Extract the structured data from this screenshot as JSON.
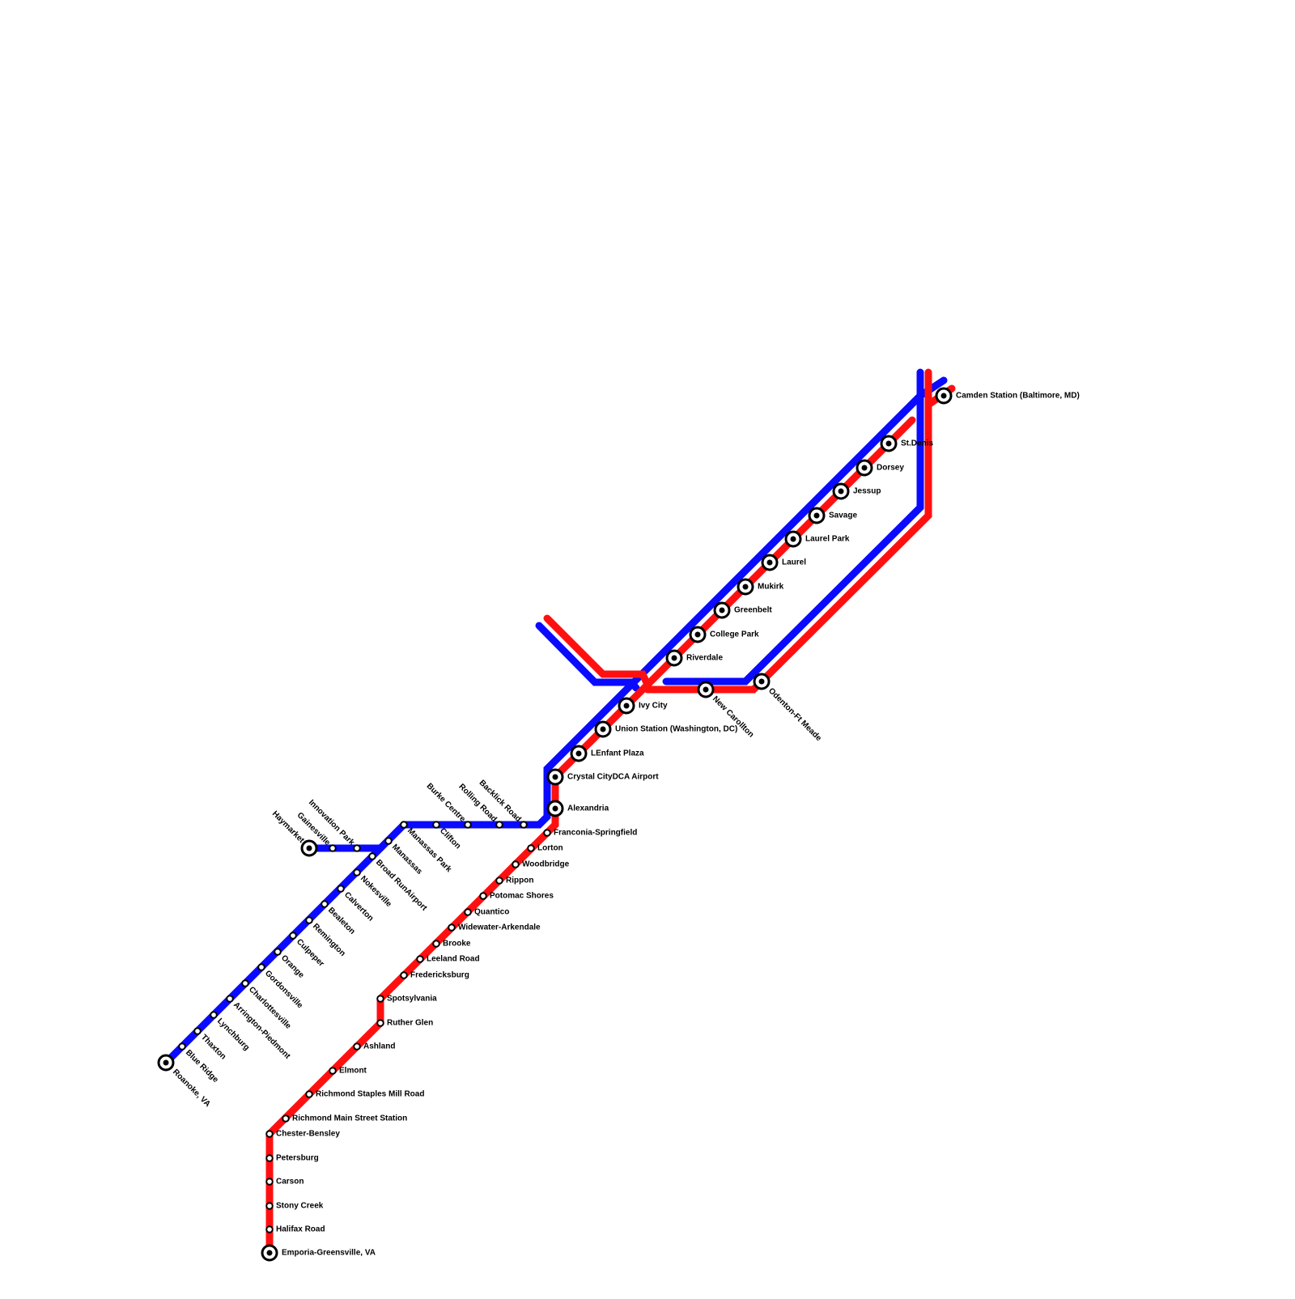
{
  "stations": [
    "Emporia-Greensville, VA",
    "Halifax Road",
    "Stony Creek",
    "Carson",
    "Petersburg",
    "Chester-Bensley",
    "Richmond Main Street Station",
    "Richmond Staples Mill Road",
    "Elmont",
    "Ashland",
    "Ruther Glen",
    "Spotsylvania",
    "Fredericksburg",
    "Leeland Road",
    "Brooke",
    "Widewater-Arkendale",
    "Quantico",
    "Potomac Shores",
    "Rippon",
    "Woodbridge",
    "Lorton",
    "Franconia-Springfield",
    "Alexandria",
    "Crystal CityDCA Airport",
    "LEnfant Plaza",
    "Union Station (Washington, DC)",
    "Ivy City",
    "Riverdale",
    "College Park",
    "Greenbelt",
    "Mukirk",
    "Laurel",
    "Laurel Park",
    "Savage",
    "Jessup",
    "Dorsey",
    "St.Denis",
    "Camden Station (Baltimore, MD)",
    "New Carollton",
    "Odenton-Ft Meade",
    "Roanoke, VA",
    "Blue Ridge",
    "Thaxton",
    "Lynchburg",
    "Arrington-Piedmont",
    "Charlottesville",
    "Gordonsville",
    "Orange",
    "Culpeper",
    "Remington",
    "Bealeton",
    "Calverton",
    "Nokesville",
    "Broad RunAirport",
    "Manassas",
    "Manassas Park",
    "Clifton",
    "Burke Centre",
    "Rolling Road",
    "Backlick Road",
    "Haymarket",
    "Gainesville",
    "Innovation Park"
  ]
}
